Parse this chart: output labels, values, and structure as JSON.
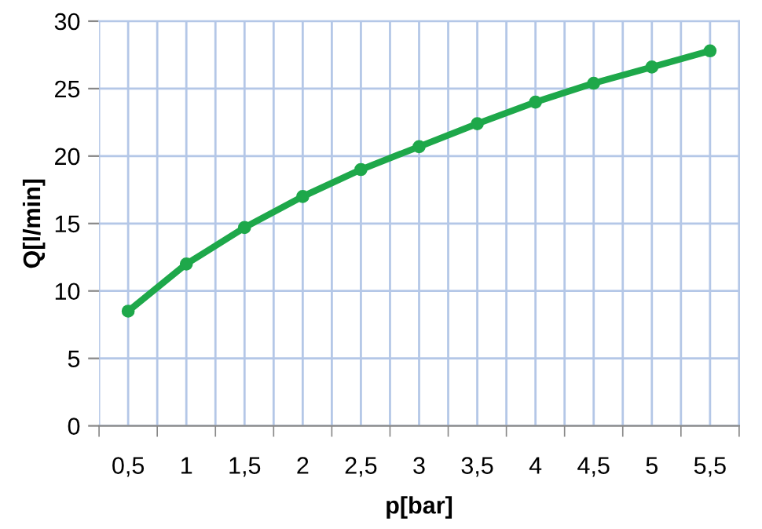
{
  "chart_data": {
    "type": "line",
    "xlabel": "p[bar]",
    "ylabel": "Q[l/min]",
    "categories": [
      "0,5",
      "1",
      "1,5",
      "2",
      "2,5",
      "3",
      "3,5",
      "4",
      "4,5",
      "5",
      "5,5"
    ],
    "series": [
      {
        "color": "#1ea84a",
        "values": [
          8.5,
          12,
          14.7,
          17,
          19,
          20.7,
          22.4,
          24,
          25.4,
          26.6,
          27.8
        ]
      }
    ],
    "ylim": [
      0,
      30
    ],
    "yticks": [
      0,
      5,
      10,
      15,
      20,
      25,
      30
    ],
    "grid": true,
    "marker": "circle",
    "line_style": "solid"
  }
}
